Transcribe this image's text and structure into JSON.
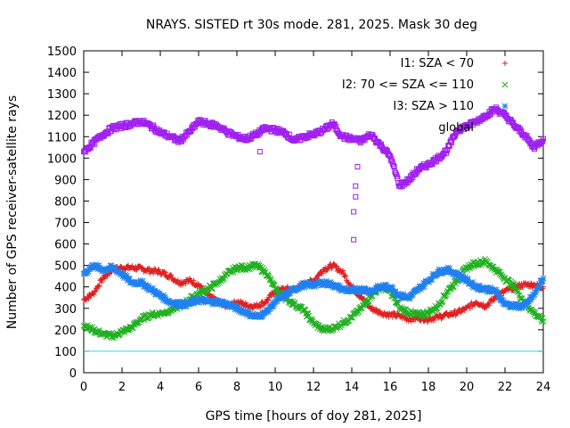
{
  "chart_data": {
    "type": "scatter",
    "title": "NRAYS. SISTED rt 30s mode. 281, 2025. Mask 30 deg",
    "xlabel": "GPS time [hours of doy 281, 2025]",
    "ylabel": "Number of GPS receiver-satellite rays",
    "xlim": [
      0,
      24
    ],
    "ylim": [
      0,
      1500
    ],
    "xticks": [
      0,
      2,
      4,
      6,
      8,
      10,
      12,
      14,
      16,
      18,
      20,
      22,
      24
    ],
    "yticks": [
      0,
      100,
      200,
      300,
      400,
      500,
      600,
      700,
      800,
      900,
      1000,
      1100,
      1200,
      1300,
      1400,
      1500
    ],
    "grid": false,
    "legend_position": "top-right",
    "reference_line": {
      "y": 100,
      "color": "#40d0e0"
    },
    "series": [
      {
        "name": "I1: SZA < 70",
        "marker": "+",
        "color": "#e02020",
        "x": [
          0,
          0.5,
          1,
          1.5,
          2,
          2.5,
          3,
          3.5,
          4,
          4.5,
          5,
          5.5,
          6,
          6.5,
          7,
          7.5,
          8,
          8.5,
          9,
          9.5,
          10,
          10.5,
          11,
          11.5,
          12,
          12.5,
          13,
          13.5,
          14,
          14.5,
          15,
          15.5,
          16,
          16.5,
          17,
          17.5,
          18,
          18.5,
          19,
          19.5,
          20,
          20.5,
          21,
          21.5,
          22,
          22.5,
          23,
          23.5,
          24
        ],
        "values": [
          340,
          370,
          440,
          480,
          490,
          490,
          485,
          475,
          470,
          450,
          420,
          430,
          410,
          360,
          330,
          310,
          330,
          315,
          310,
          330,
          380,
          390,
          390,
          410,
          430,
          480,
          500,
          470,
          400,
          350,
          300,
          280,
          270,
          265,
          250,
          255,
          250,
          260,
          270,
          280,
          300,
          330,
          310,
          350,
          380,
          400,
          410,
          410,
          400
        ]
      },
      {
        "name": "I2: 70 <= SZA <= 110",
        "marker": "x",
        "color": "#20b020",
        "x": [
          0,
          0.5,
          1,
          1.5,
          2,
          2.5,
          3,
          3.5,
          4,
          4.5,
          5,
          5.5,
          6,
          6.5,
          7,
          7.5,
          8,
          8.5,
          9,
          9.5,
          10,
          10.5,
          11,
          11.5,
          12,
          12.5,
          13,
          13.5,
          14,
          14.5,
          15,
          15.5,
          16,
          16.5,
          17,
          17.5,
          18,
          18.5,
          19,
          19.5,
          20,
          20.5,
          21,
          21.5,
          22,
          22.5,
          23,
          23.5,
          24
        ],
        "values": [
          220,
          200,
          180,
          170,
          190,
          210,
          250,
          270,
          275,
          290,
          310,
          340,
          370,
          390,
          420,
          460,
          490,
          490,
          500,
          470,
          390,
          350,
          320,
          290,
          230,
          200,
          205,
          230,
          260,
          300,
          360,
          400,
          380,
          300,
          280,
          270,
          280,
          310,
          380,
          430,
          490,
          510,
          520,
          480,
          440,
          400,
          330,
          280,
          240
        ]
      },
      {
        "name": "I3: SZA > 110",
        "marker": "*",
        "color": "#2080f0",
        "x": [
          0,
          0.5,
          1,
          1.5,
          2,
          2.5,
          3,
          3.5,
          4,
          4.5,
          5,
          5.5,
          6,
          6.5,
          7,
          7.5,
          8,
          8.5,
          9,
          9.5,
          10,
          10.5,
          11,
          11.5,
          12,
          12.5,
          13,
          13.5,
          14,
          14.5,
          15,
          15.5,
          16,
          16.5,
          17,
          17.5,
          18,
          18.5,
          19,
          19.5,
          20,
          20.5,
          21,
          21.5,
          22,
          22.5,
          23,
          23.5,
          24
        ],
        "values": [
          460,
          500,
          480,
          490,
          460,
          420,
          420,
          390,
          360,
          330,
          320,
          320,
          340,
          330,
          330,
          320,
          300,
          280,
          260,
          280,
          330,
          360,
          390,
          410,
          410,
          420,
          410,
          390,
          380,
          390,
          380,
          400,
          400,
          360,
          350,
          390,
          430,
          470,
          480,
          460,
          430,
          400,
          390,
          380,
          320,
          310,
          310,
          360,
          440
        ]
      },
      {
        "name": "global",
        "marker": "□",
        "color": "#a020f0",
        "x": [
          0,
          0.5,
          1,
          1.5,
          2,
          2.5,
          3,
          3.5,
          4,
          4.5,
          5,
          5.5,
          6,
          6.5,
          7,
          7.5,
          8,
          8.5,
          9,
          9.5,
          10,
          10.5,
          11,
          11.5,
          12,
          12.5,
          13,
          13.5,
          14,
          14.5,
          15,
          15.5,
          16,
          16.5,
          17,
          17.5,
          18,
          18.5,
          19,
          19.5,
          20,
          20.5,
          21,
          21.5,
          22,
          22.5,
          23,
          23.5,
          24
        ],
        "values": [
          1030,
          1070,
          1110,
          1140,
          1150,
          1160,
          1170,
          1150,
          1120,
          1100,
          1080,
          1120,
          1170,
          1160,
          1150,
          1120,
          1100,
          1090,
          1110,
          1140,
          1130,
          1120,
          1080,
          1100,
          1110,
          1130,
          1160,
          1100,
          1090,
          1080,
          1110,
          1060,
          1010,
          870,
          900,
          950,
          970,
          1000,
          1040,
          1130,
          1150,
          1170,
          1200,
          1230,
          1200,
          1150,
          1110,
          1050,
          1090
        ],
        "outliers": [
          {
            "x": 14.1,
            "y": 620
          },
          {
            "x": 14.1,
            "y": 750
          },
          {
            "x": 14.2,
            "y": 820
          },
          {
            "x": 14.2,
            "y": 870
          },
          {
            "x": 14.3,
            "y": 960
          },
          {
            "x": 9.2,
            "y": 1030
          }
        ]
      }
    ]
  }
}
